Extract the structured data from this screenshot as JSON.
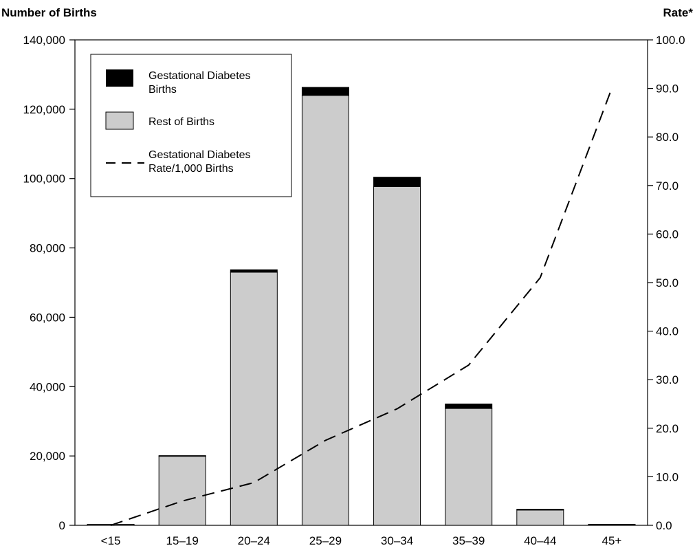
{
  "chart_data": {
    "type": "bar",
    "categories": [
      "<15",
      "15–19",
      "20–24",
      "25–29",
      "30–34",
      "35–39",
      "40–44",
      "45+"
    ],
    "series": [
      {
        "name": "Rest of Births",
        "values": [
          300,
          20000,
          73000,
          124000,
          97700,
          33700,
          4400,
          250
        ],
        "color": "#cccccc"
      },
      {
        "name": "Gestational Diabetes Births",
        "values": [
          0,
          100,
          700,
          2300,
          2700,
          1300,
          250,
          30
        ],
        "color": "#000000"
      }
    ],
    "line_series": {
      "name": "Gestational Diabetes Rate/1,000 Births",
      "values": [
        0.0,
        5.0,
        8.8,
        17.5,
        24.0,
        33.0,
        51.0,
        90.0
      ],
      "axis": "right"
    },
    "ylabel": "Number of Births",
    "ylabel_right": "Rate*",
    "ylim": [
      0,
      140000
    ],
    "ylim_right": [
      0,
      100
    ],
    "yticks": [
      "0",
      "20,000",
      "40,000",
      "60,000",
      "80,000",
      "100,000",
      "120,000",
      "140,000"
    ],
    "yticks_right": [
      "0.0",
      "10.0",
      "20.0",
      "30.0",
      "40.0",
      "50.0",
      "60.0",
      "70.0",
      "80.0",
      "90.0",
      "100.0"
    ],
    "legend": {
      "placement": "top-left",
      "entries": [
        {
          "label_lines": [
            "Gestational Diabetes",
            "Births"
          ],
          "swatch": "solid-black"
        },
        {
          "label_lines": [
            "Rest of Births"
          ],
          "swatch": "gray-box"
        },
        {
          "label_lines": [
            "Gestational Diabetes",
            "Rate/1,000 Births"
          ],
          "swatch": "dashed-line"
        }
      ]
    },
    "grid": false
  }
}
